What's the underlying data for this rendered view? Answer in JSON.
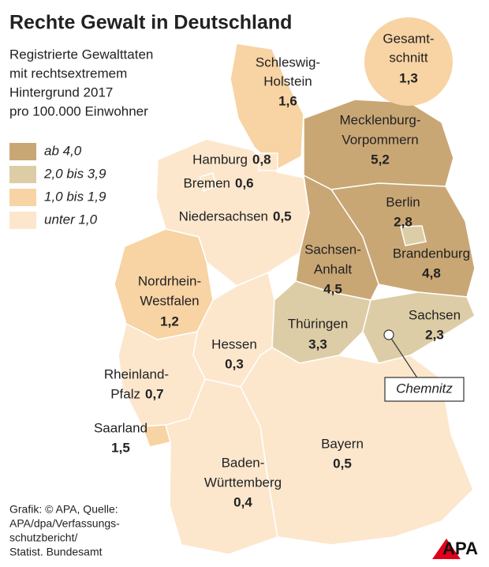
{
  "header": {
    "title": "Rechte Gewalt in Deutschland",
    "subtitle_lines": [
      "Registrierte Gewalttaten",
      "mit rechtsextremem",
      "Hintergrund 2017",
      "pro 100.000 Einwohner"
    ]
  },
  "legend": [
    {
      "label": "ab 4,0",
      "color": "#c9a775"
    },
    {
      "label": "2,0 bis 3,9",
      "color": "#ddcda6"
    },
    {
      "label": "1,0 bis 1,9",
      "color": "#f8d3a3"
    },
    {
      "label": "unter 1,0",
      "color": "#fce7cd"
    }
  ],
  "average": {
    "name_lines": [
      "Gesamt-",
      "schnitt"
    ],
    "value": 1.3,
    "value_label": "1,3",
    "color": "#f8d3a3"
  },
  "regions": [
    {
      "name_lines": [
        "Schleswig-",
        "Holstein"
      ],
      "value": 1.6,
      "value_label": "1,6",
      "color": "#f8d3a3"
    },
    {
      "name_lines": [
        "Hamburg"
      ],
      "value": 0.8,
      "value_label": "0,8",
      "color": "#fce7cd"
    },
    {
      "name_lines": [
        "Bremen"
      ],
      "value": 0.6,
      "value_label": "0,6",
      "color": "#fce7cd"
    },
    {
      "name_lines": [
        "Niedersachsen"
      ],
      "value": 0.5,
      "value_label": "0,5",
      "color": "#fce7cd"
    },
    {
      "name_lines": [
        "Mecklenburg-",
        "Vorpommern"
      ],
      "value": 5.2,
      "value_label": "5,2",
      "color": "#c9a775"
    },
    {
      "name_lines": [
        "Berlin"
      ],
      "value": 2.8,
      "value_label": "2,8",
      "color": "#ddcda6"
    },
    {
      "name_lines": [
        "Brandenburg"
      ],
      "value": 4.8,
      "value_label": "4,8",
      "color": "#c9a775"
    },
    {
      "name_lines": [
        "Sachsen-",
        "Anhalt"
      ],
      "value": 4.5,
      "value_label": "4,5",
      "color": "#c9a775"
    },
    {
      "name_lines": [
        "Nordrhein-",
        "Westfalen"
      ],
      "value": 1.2,
      "value_label": "1,2",
      "color": "#f8d3a3"
    },
    {
      "name_lines": [
        "Hessen"
      ],
      "value": 0.3,
      "value_label": "0,3",
      "color": "#fce7cd"
    },
    {
      "name_lines": [
        "Thüringen"
      ],
      "value": 3.3,
      "value_label": "3,3",
      "color": "#ddcda6"
    },
    {
      "name_lines": [
        "Sachsen"
      ],
      "value": 2.3,
      "value_label": "2,3",
      "color": "#ddcda6"
    },
    {
      "name_lines": [
        "Rheinland-",
        "Pfalz"
      ],
      "value": 0.7,
      "value_label": "0,7",
      "color": "#fce7cd"
    },
    {
      "name_lines": [
        "Saarland"
      ],
      "value": 1.5,
      "value_label": "1,5",
      "color": "#f8d3a3"
    },
    {
      "name_lines": [
        "Bayern"
      ],
      "value": 0.5,
      "value_label": "0,5",
      "color": "#fce7cd"
    },
    {
      "name_lines": [
        "Baden-",
        "Württemberg"
      ],
      "value": 0.4,
      "value_label": "0,4",
      "color": "#fce7cd"
    }
  ],
  "city": "Chemnitz",
  "source_lines": [
    "Grafik: © APA, Quelle:",
    "APA/dpa/Verfassungs-",
    "schutzbericht/",
    "Statist. Bundesamt"
  ],
  "logo": "APA"
}
